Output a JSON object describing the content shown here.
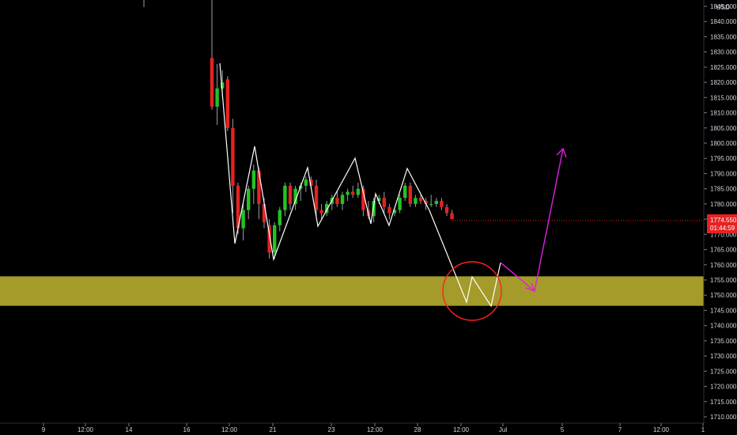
{
  "chart_data": {
    "type": "candlestick",
    "currency": "USD",
    "y_axis": {
      "ylim": [
        1706,
        1852
      ],
      "ticks": [
        1710,
        1715,
        1720,
        1725,
        1730,
        1735,
        1740,
        1745,
        1750,
        1755,
        1760,
        1765,
        1770,
        1775,
        1780,
        1785,
        1790,
        1795,
        1800,
        1805,
        1810,
        1815,
        1820,
        1825,
        1830,
        1835,
        1840,
        1845
      ]
    },
    "x_axis": {
      "tick_labels": [
        "9",
        "12:00",
        "14",
        "16",
        "12:00",
        "21",
        "23",
        "12:00",
        "28",
        "12:00",
        "Jul",
        "5",
        "7",
        "12:00",
        "1"
      ]
    },
    "last_price": {
      "value": "1774.550",
      "countdown": "01:44:59"
    },
    "support_zone": {
      "low": 1746.5,
      "high": 1756.2,
      "color": "#a49b2a"
    },
    "colors": {
      "up": "#26a69a",
      "up_bright": "#22c422",
      "down": "#e52222",
      "background": "#000000",
      "projection": "#ffffff",
      "forecast": "#e020e0",
      "circle": "#ff2020"
    },
    "candles": [
      {
        "o": 1828,
        "h": 1852,
        "l": 1811,
        "c": 1812
      },
      {
        "o": 1812,
        "h": 1826,
        "l": 1806,
        "c": 1818
      },
      {
        "o": 1818,
        "h": 1824,
        "l": 1815,
        "c": 1820
      },
      {
        "o": 1821,
        "h": 1822,
        "l": 1804,
        "c": 1805
      },
      {
        "o": 1805,
        "h": 1808,
        "l": 1777,
        "c": 1786
      },
      {
        "o": 1786,
        "h": 1787,
        "l": 1770,
        "c": 1772
      },
      {
        "o": 1772,
        "h": 1780,
        "l": 1768,
        "c": 1778
      },
      {
        "o": 1778,
        "h": 1786,
        "l": 1775,
        "c": 1785
      },
      {
        "o": 1785,
        "h": 1793,
        "l": 1780,
        "c": 1791
      },
      {
        "o": 1791,
        "h": 1792,
        "l": 1775,
        "c": 1780
      },
      {
        "o": 1780,
        "h": 1782,
        "l": 1772,
        "c": 1774
      },
      {
        "o": 1773,
        "h": 1775,
        "l": 1762,
        "c": 1764
      },
      {
        "o": 1764,
        "h": 1774,
        "l": 1762,
        "c": 1773
      },
      {
        "o": 1773,
        "h": 1779,
        "l": 1771,
        "c": 1778
      },
      {
        "o": 1778,
        "h": 1787,
        "l": 1776,
        "c": 1786
      },
      {
        "o": 1786,
        "h": 1787,
        "l": 1778,
        "c": 1780
      },
      {
        "o": 1780,
        "h": 1786,
        "l": 1778,
        "c": 1785
      },
      {
        "o": 1785,
        "h": 1787,
        "l": 1781,
        "c": 1786
      },
      {
        "o": 1786,
        "h": 1789,
        "l": 1784,
        "c": 1788
      },
      {
        "o": 1788,
        "h": 1789,
        "l": 1785,
        "c": 1786
      },
      {
        "o": 1786,
        "h": 1788,
        "l": 1776,
        "c": 1778
      },
      {
        "o": 1778,
        "h": 1780,
        "l": 1775,
        "c": 1777
      },
      {
        "o": 1777,
        "h": 1781,
        "l": 1776,
        "c": 1780
      },
      {
        "o": 1780,
        "h": 1783,
        "l": 1778,
        "c": 1782
      },
      {
        "o": 1782,
        "h": 1784,
        "l": 1779,
        "c": 1780
      },
      {
        "o": 1780,
        "h": 1784,
        "l": 1778,
        "c": 1783
      },
      {
        "o": 1783,
        "h": 1785,
        "l": 1781,
        "c": 1784
      },
      {
        "o": 1784,
        "h": 1786,
        "l": 1782,
        "c": 1783
      },
      {
        "o": 1783,
        "h": 1787,
        "l": 1782,
        "c": 1785
      },
      {
        "o": 1785,
        "h": 1786,
        "l": 1776,
        "c": 1778
      },
      {
        "o": 1778,
        "h": 1781,
        "l": 1775,
        "c": 1776
      },
      {
        "o": 1776,
        "h": 1782,
        "l": 1774,
        "c": 1781
      },
      {
        "o": 1781,
        "h": 1783,
        "l": 1780,
        "c": 1782
      },
      {
        "o": 1782,
        "h": 1784,
        "l": 1777,
        "c": 1779
      },
      {
        "o": 1779,
        "h": 1780,
        "l": 1775,
        "c": 1777
      },
      {
        "o": 1777,
        "h": 1779,
        "l": 1776,
        "c": 1778
      },
      {
        "o": 1778,
        "h": 1783,
        "l": 1777,
        "c": 1782
      },
      {
        "o": 1782,
        "h": 1787,
        "l": 1781,
        "c": 1786
      },
      {
        "o": 1786,
        "h": 1787,
        "l": 1779,
        "c": 1780
      },
      {
        "o": 1780,
        "h": 1783,
        "l": 1779,
        "c": 1782
      },
      {
        "o": 1782,
        "h": 1783,
        "l": 1780,
        "c": 1781
      },
      {
        "o": 1781,
        "h": 1782,
        "l": 1778,
        "c": 1780
      },
      {
        "o": 1780,
        "h": 1783,
        "l": 1779,
        "c": 1780
      },
      {
        "o": 1780,
        "h": 1782,
        "l": 1779,
        "c": 1781
      },
      {
        "o": 1781,
        "h": 1782,
        "l": 1778,
        "c": 1779
      },
      {
        "o": 1779,
        "h": 1780,
        "l": 1776,
        "c": 1777
      },
      {
        "o": 1777,
        "h": 1778,
        "l": 1775,
        "c": 1775
      }
    ]
  }
}
